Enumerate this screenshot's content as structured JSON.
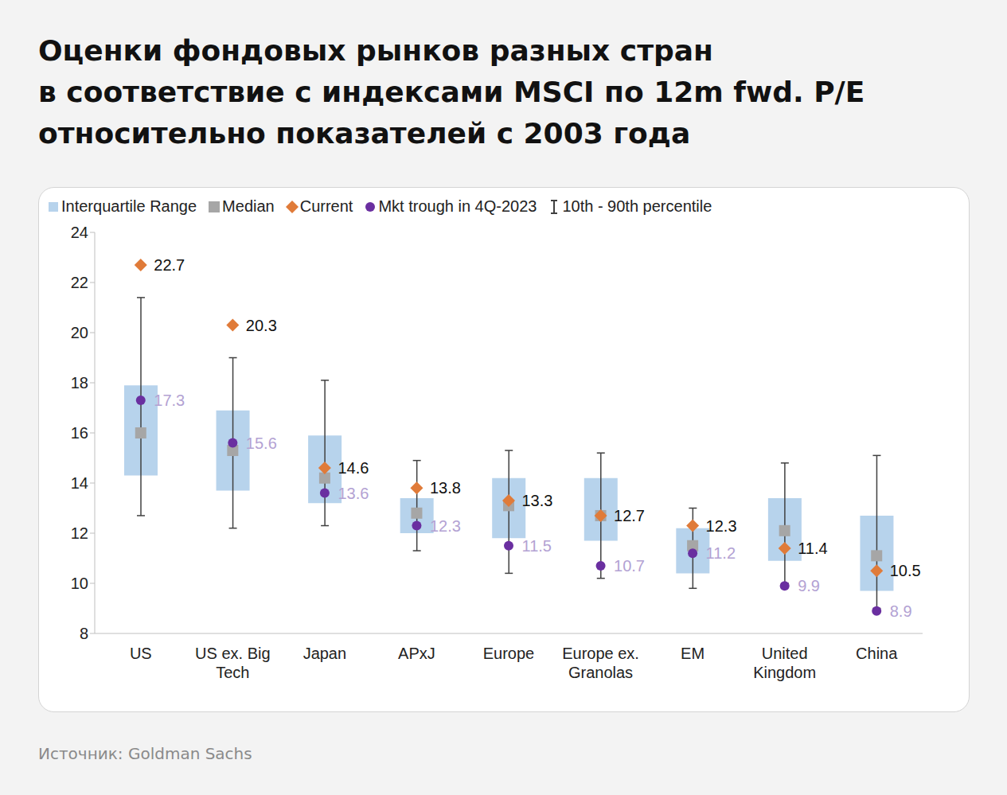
{
  "chart_data": {
    "type": "box",
    "title": "Оценки фондовых рынков разных стран\nв соответствие с индексами MSCI по 12m fwd. P/E\nотносительно показателей с 2003 года",
    "source": "Источник: Goldman Sachs",
    "categories": [
      "US",
      "US ex. Big Tech",
      "Japan",
      "APxJ",
      "Europe",
      "Europe ex. Granolas",
      "EM",
      "United Kingdom",
      "China"
    ],
    "series": [
      {
        "name": "Interquartile Range",
        "type": "bar",
        "color": "#b7d3ec",
        "values": [
          [
            14.3,
            17.9
          ],
          [
            13.7,
            16.9
          ],
          [
            13.2,
            15.9
          ],
          [
            12.0,
            13.4
          ],
          [
            11.8,
            14.2
          ],
          [
            11.7,
            14.2
          ],
          [
            10.4,
            12.2
          ],
          [
            10.9,
            13.4
          ],
          [
            9.7,
            12.7
          ]
        ]
      },
      {
        "name": "Median",
        "type": "scatter",
        "marker": "square",
        "color": "#a6a6a6",
        "values": [
          16.0,
          15.3,
          14.2,
          12.8,
          13.1,
          12.7,
          11.5,
          12.1,
          11.1
        ]
      },
      {
        "name": "Current",
        "type": "scatter",
        "marker": "diamond",
        "color": "#e07b39",
        "data_labels": true,
        "values": [
          22.7,
          20.3,
          14.6,
          13.8,
          13.3,
          12.7,
          12.3,
          11.4,
          10.5
        ]
      },
      {
        "name": "Mkt trough in 4Q-2023",
        "type": "scatter",
        "marker": "circle",
        "color": "#6a2fa0",
        "data_labels": true,
        "values": [
          17.3,
          15.6,
          13.6,
          12.3,
          11.5,
          10.7,
          11.2,
          9.9,
          8.9
        ]
      },
      {
        "name": "10th - 90th percentile",
        "type": "errorbar",
        "color": "#404040",
        "values": [
          [
            12.7,
            21.4
          ],
          [
            12.2,
            19.0
          ],
          [
            12.3,
            18.1
          ],
          [
            11.3,
            14.9
          ],
          [
            10.4,
            15.3
          ],
          [
            10.2,
            15.2
          ],
          [
            9.8,
            13.0
          ],
          [
            10.0,
            14.8
          ],
          [
            9.0,
            15.1
          ]
        ]
      }
    ],
    "ylim": [
      8,
      24
    ],
    "yticks": [
      8,
      10,
      12,
      14,
      16,
      18,
      20,
      22,
      24
    ],
    "legend": "top"
  }
}
